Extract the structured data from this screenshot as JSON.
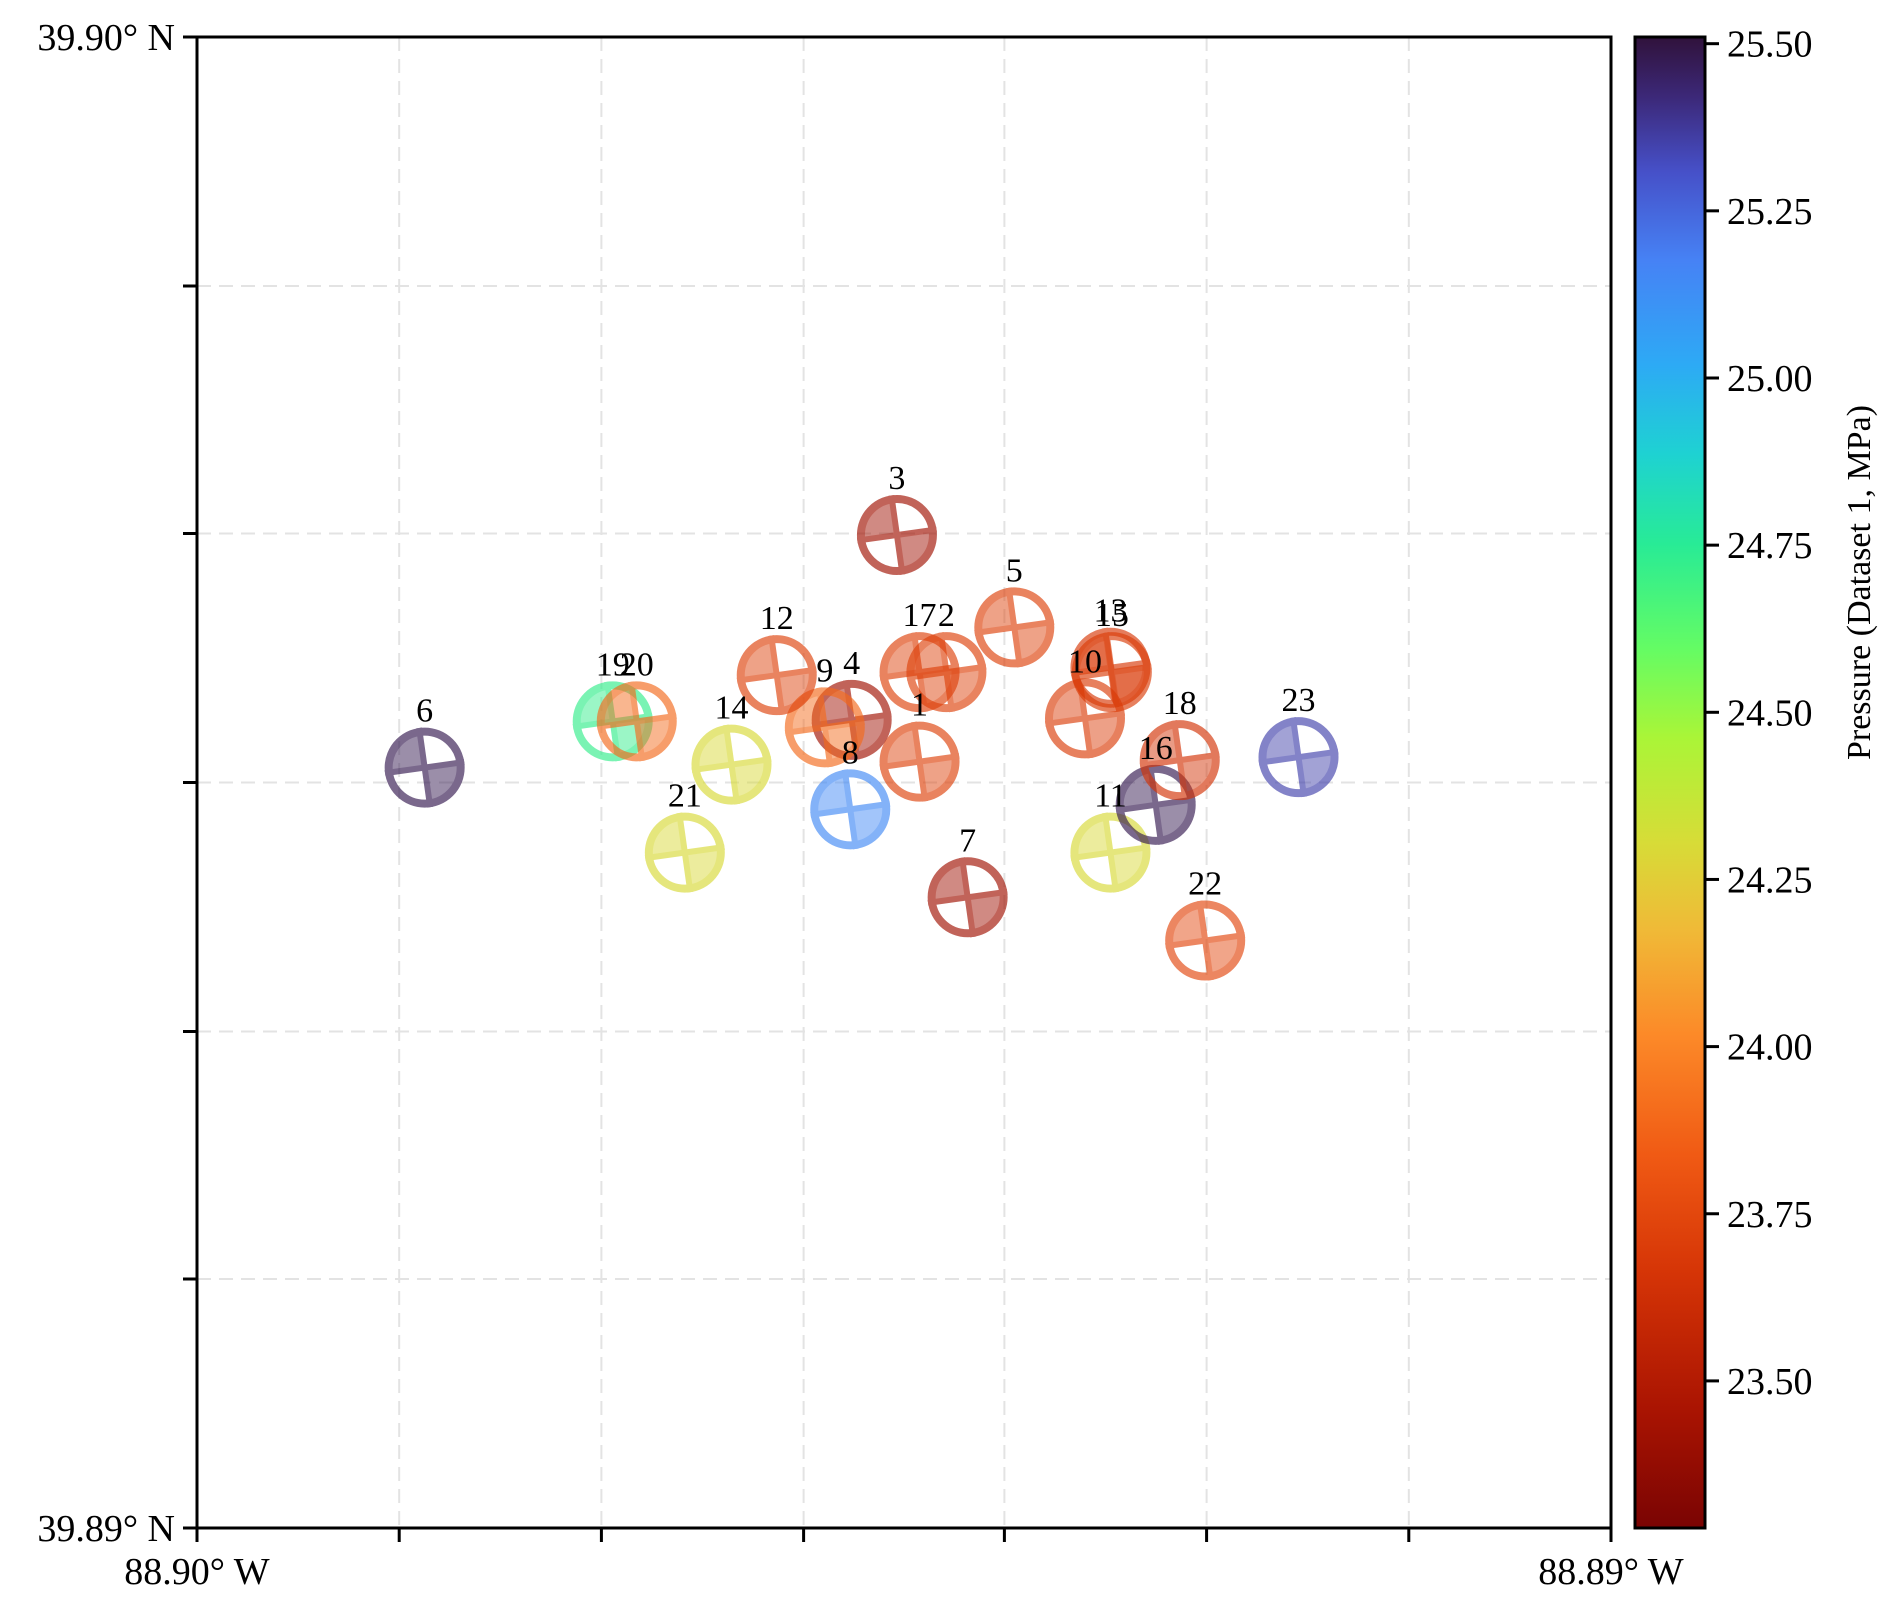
{
  "chart_data": {
    "type": "scatter",
    "title": "",
    "xlabel": "",
    "ylabel": "",
    "marker": "focal-mechanism-beachball",
    "xlim": [
      -88.9,
      -88.89
    ],
    "ylim": [
      39.89,
      39.9
    ],
    "x_ticks": [
      -88.9,
      -88.89857,
      -88.89714,
      -88.89571,
      -88.89429,
      -88.89286,
      -88.89143,
      -88.89
    ],
    "x_tick_labels": [
      "88.90° W",
      "",
      "",
      "",
      "",
      "",
      "",
      "88.89° W"
    ],
    "y_ticks": [
      39.89,
      39.89167,
      39.89333,
      39.895,
      39.89667,
      39.89833,
      39.9
    ],
    "y_tick_labels": [
      "39.89° N",
      "",
      "",
      "",
      "",
      "",
      "39.90° N"
    ],
    "grid": true,
    "colorbar": {
      "label": "Pressure (Dataset 1, MPa)",
      "colormap": "turbo-reversed",
      "range": [
        23.28,
        25.51
      ],
      "ticks": [
        23.5,
        23.75,
        24.0,
        24.25,
        24.5,
        24.75,
        25.0,
        25.25,
        25.5
      ],
      "tick_labels": [
        "23.50",
        "23.75",
        "24.00",
        "24.25",
        "24.50",
        "24.75",
        "25.00",
        "25.25",
        "25.50"
      ]
    },
    "points": [
      {
        "id": "1",
        "lon": -88.89489,
        "lat": 39.89514,
        "pressure": 23.72
      },
      {
        "id": "2",
        "lon": -88.8947,
        "lat": 39.89574,
        "pressure": 23.72
      },
      {
        "id": "3",
        "lon": -88.89505,
        "lat": 39.89666,
        "pressure": 23.42
      },
      {
        "id": "4",
        "lon": -88.89537,
        "lat": 39.89542,
        "pressure": 23.42
      },
      {
        "id": "5",
        "lon": -88.89422,
        "lat": 39.89604,
        "pressure": 23.72
      },
      {
        "id": "6",
        "lon": -88.89839,
        "lat": 39.8951,
        "pressure": 25.48
      },
      {
        "id": "7",
        "lon": -88.89455,
        "lat": 39.89423,
        "pressure": 23.42
      },
      {
        "id": "8",
        "lon": -88.89538,
        "lat": 39.89482,
        "pressure": 25.15
      },
      {
        "id": "9",
        "lon": -88.89556,
        "lat": 39.89537,
        "pressure": 23.9
      },
      {
        "id": "10",
        "lon": -88.89372,
        "lat": 39.89543,
        "pressure": 23.7
      },
      {
        "id": "11",
        "lon": -88.89354,
        "lat": 39.89453,
        "pressure": 24.3
      },
      {
        "id": "12",
        "lon": -88.8959,
        "lat": 39.89572,
        "pressure": 23.72
      },
      {
        "id": "13",
        "lon": -88.89354,
        "lat": 39.89577,
        "pressure": 23.68
      },
      {
        "id": "14",
        "lon": -88.89622,
        "lat": 39.89512,
        "pressure": 24.3
      },
      {
        "id": "15",
        "lon": -88.89353,
        "lat": 39.89574,
        "pressure": 23.7
      },
      {
        "id": "16",
        "lon": -88.89322,
        "lat": 39.89485,
        "pressure": 25.48
      },
      {
        "id": "17",
        "lon": -88.89489,
        "lat": 39.89574,
        "pressure": 23.72
      },
      {
        "id": "18",
        "lon": -88.89305,
        "lat": 39.89515,
        "pressure": 23.65
      },
      {
        "id": "19",
        "lon": -88.89706,
        "lat": 39.89541,
        "pressure": 24.72
      },
      {
        "id": "20",
        "lon": -88.89689,
        "lat": 39.89541,
        "pressure": 23.9
      },
      {
        "id": "21",
        "lon": -88.89655,
        "lat": 39.89453,
        "pressure": 24.3
      },
      {
        "id": "22",
        "lon": -88.89287,
        "lat": 39.89394,
        "pressure": 23.75
      },
      {
        "id": "23",
        "lon": -88.89221,
        "lat": 39.89517,
        "pressure": 25.35
      }
    ]
  }
}
